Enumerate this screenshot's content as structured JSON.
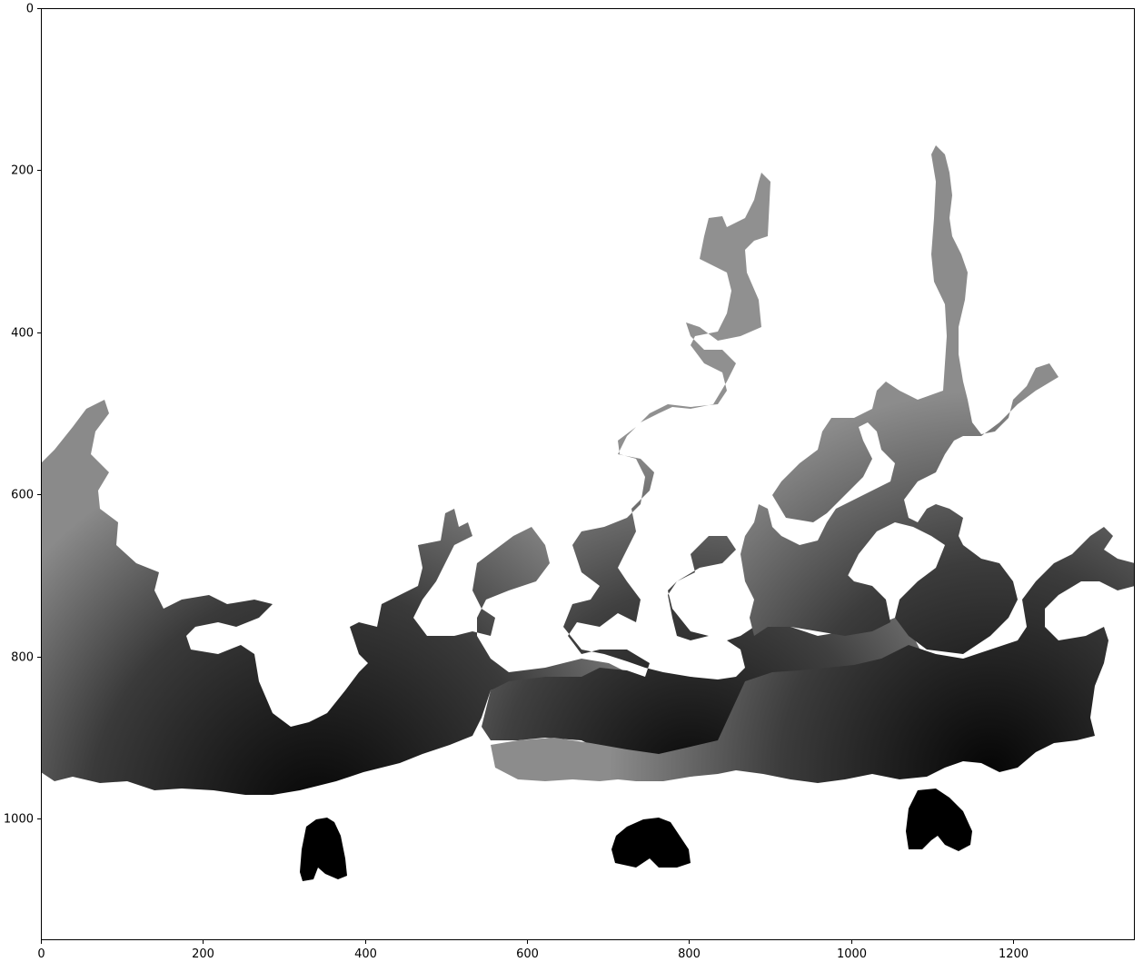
{
  "figure": {
    "kind": "grayscale image rendered with matplotlib imshow",
    "colors": {
      "background": "#ffffff",
      "frame": "#000000",
      "low_value": "#000000",
      "high_value": "#c8c8c8"
    },
    "x_axis": {
      "range": [
        0,
        1350
      ],
      "ticks": [
        0,
        200,
        400,
        600,
        800,
        1000,
        1200
      ],
      "labels": [
        "0",
        "200",
        "400",
        "600",
        "800",
        "1000",
        "1200"
      ]
    },
    "y_axis": {
      "range": [
        0,
        1150
      ],
      "inverted": true,
      "ticks": [
        0,
        200,
        400,
        600,
        800,
        1000
      ],
      "labels": [
        "0",
        "200",
        "400",
        "600",
        "800",
        "1000"
      ]
    }
  }
}
